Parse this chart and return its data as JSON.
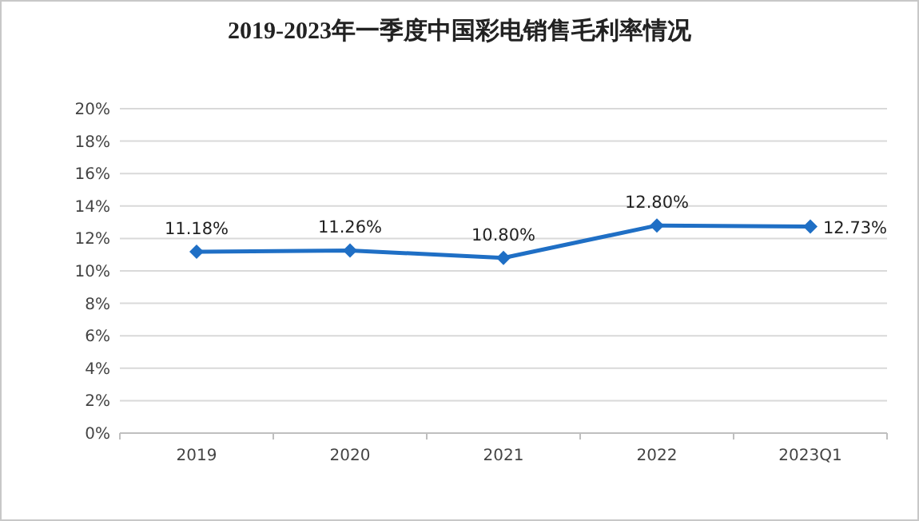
{
  "chart_data": {
    "type": "line",
    "title": "2019-2023年一季度中国彩电销售毛利率情况",
    "categories": [
      "2019",
      "2020",
      "2021",
      "2022",
      "2023Q1"
    ],
    "series": [
      {
        "color": "#1f6fc5",
        "values": [
          11.18,
          11.26,
          10.8,
          12.8,
          12.73
        ],
        "value_labels": [
          "11.18%",
          "11.26%",
          "10.80%",
          "12.80%",
          "12.73%"
        ]
      }
    ],
    "ylim": [
      0,
      20
    ],
    "yticks": [
      {
        "value": 0,
        "label": "0%"
      },
      {
        "value": 2,
        "label": "2%"
      },
      {
        "value": 4,
        "label": "4%"
      },
      {
        "value": 6,
        "label": "6%"
      },
      {
        "value": 8,
        "label": "8%"
      },
      {
        "value": 10,
        "label": "10%"
      },
      {
        "value": 12,
        "label": "12%"
      },
      {
        "value": 14,
        "label": "14%"
      },
      {
        "value": 16,
        "label": "16%"
      },
      {
        "value": 18,
        "label": "18%"
      },
      {
        "value": 20,
        "label": "20%"
      }
    ],
    "grid": "y",
    "marker": "diamond",
    "line_style": "solid"
  }
}
